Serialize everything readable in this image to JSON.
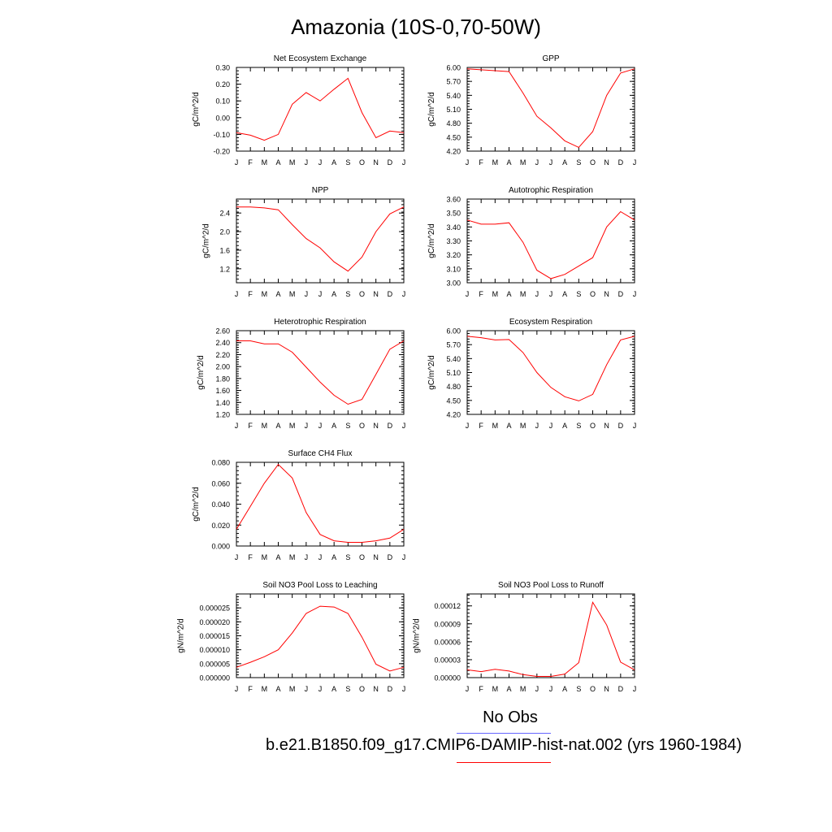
{
  "page": {
    "title": "Amazonia (10S-0,70-50W)"
  },
  "months": [
    "J",
    "F",
    "M",
    "A",
    "M",
    "J",
    "J",
    "A",
    "S",
    "O",
    "N",
    "D",
    "J"
  ],
  "legend": {
    "obs_label": "No Obs",
    "obs_color": "#6666ff",
    "model_label": "b.e21.B1850.f09_g17.CMIP6-DAMIP-hist-nat.002 (yrs 1960-1984)",
    "model_color": "#ff0000"
  },
  "chart_data": [
    {
      "type": "line",
      "title": "Net Ecosystem Exchange",
      "ylabel": "gC/m^2/d",
      "ylim": [
        -0.2,
        0.3
      ],
      "yticks": [
        -0.2,
        -0.1,
        0.0,
        0.1,
        0.2,
        0.3
      ],
      "ytick_labels": [
        "-0.20",
        "-0.10",
        "0.00",
        "0.10",
        "0.20",
        "0.30"
      ],
      "series": [
        {
          "values": [
            -0.09,
            -0.105,
            -0.135,
            -0.1,
            0.08,
            0.15,
            0.1,
            0.17,
            0.235,
            0.03,
            -0.12,
            -0.08,
            -0.09
          ]
        }
      ]
    },
    {
      "type": "line",
      "title": "GPP",
      "ylabel": "gC/m^2/d",
      "ylim": [
        4.2,
        6.0
      ],
      "yticks": [
        4.2,
        4.5,
        4.8,
        5.1,
        5.4,
        5.7,
        6.0
      ],
      "ytick_labels": [
        "4.20",
        "4.50",
        "4.80",
        "5.10",
        "5.40",
        "5.70",
        "6.00"
      ],
      "series": [
        {
          "values": [
            5.97,
            5.95,
            5.93,
            5.91,
            5.45,
            4.95,
            4.7,
            4.42,
            4.28,
            4.62,
            5.4,
            5.88,
            5.97
          ]
        }
      ]
    },
    {
      "type": "line",
      "title": "NPP",
      "ylabel": "gC/m^2/d",
      "ylim": [
        0.9,
        2.7
      ],
      "yticks": [
        1.2,
        1.6,
        2.0,
        2.4
      ],
      "ytick_labels": [
        "1.2",
        "1.6",
        "2.0",
        "2.4"
      ],
      "series": [
        {
          "values": [
            2.53,
            2.53,
            2.51,
            2.47,
            2.15,
            1.85,
            1.65,
            1.35,
            1.15,
            1.45,
            2.0,
            2.38,
            2.53
          ]
        }
      ]
    },
    {
      "type": "line",
      "title": "Autotrophic Respiration",
      "ylabel": "gC/m^2/d",
      "ylim": [
        3.0,
        3.6
      ],
      "yticks": [
        3.0,
        3.1,
        3.2,
        3.3,
        3.4,
        3.5,
        3.6
      ],
      "ytick_labels": [
        "3.00",
        "3.10",
        "3.20",
        "3.30",
        "3.40",
        "3.50",
        "3.60"
      ],
      "series": [
        {
          "values": [
            3.45,
            3.42,
            3.42,
            3.43,
            3.29,
            3.09,
            3.03,
            3.06,
            3.12,
            3.18,
            3.4,
            3.51,
            3.45
          ]
        }
      ]
    },
    {
      "type": "line",
      "title": "Heterotrophic Respiration",
      "ylabel": "gC/m^2/d",
      "ylim": [
        1.2,
        2.6
      ],
      "yticks": [
        1.2,
        1.4,
        1.6,
        1.8,
        2.0,
        2.2,
        2.4,
        2.6
      ],
      "ytick_labels": [
        "1.20",
        "1.40",
        "1.60",
        "1.80",
        "2.00",
        "2.20",
        "2.40",
        "2.60"
      ],
      "series": [
        {
          "values": [
            2.43,
            2.43,
            2.38,
            2.38,
            2.24,
            1.99,
            1.74,
            1.52,
            1.37,
            1.45,
            1.87,
            2.29,
            2.43
          ]
        }
      ]
    },
    {
      "type": "line",
      "title": "Ecosystem Respiration",
      "ylabel": "gC/m^2/d",
      "ylim": [
        4.2,
        6.0
      ],
      "yticks": [
        4.2,
        4.5,
        4.8,
        5.1,
        5.4,
        5.7,
        6.0
      ],
      "ytick_labels": [
        "4.20",
        "4.50",
        "4.80",
        "5.10",
        "5.40",
        "5.70",
        "6.00"
      ],
      "series": [
        {
          "values": [
            5.88,
            5.85,
            5.8,
            5.81,
            5.53,
            5.1,
            4.78,
            4.58,
            4.49,
            4.63,
            5.27,
            5.8,
            5.88
          ]
        }
      ]
    },
    {
      "type": "line",
      "title": "Surface CH4 Flux",
      "ylabel": "gC/m^2/d",
      "ylim": [
        0.0,
        0.08
      ],
      "yticks": [
        0.0,
        0.02,
        0.04,
        0.06,
        0.08
      ],
      "ytick_labels": [
        "0.000",
        "0.020",
        "0.040",
        "0.060",
        "0.080"
      ],
      "series": [
        {
          "values": [
            0.016,
            0.038,
            0.06,
            0.078,
            0.065,
            0.032,
            0.011,
            0.005,
            0.0035,
            0.0035,
            0.005,
            0.0075,
            0.016
          ]
        }
      ]
    },
    {
      "type": "line",
      "title": "Soil NO3 Pool Loss to Leaching",
      "ylabel": "gN/m^2/d",
      "ylim": [
        0.0,
        3e-05
      ],
      "yticks": [
        0.0,
        5e-06,
        1e-05,
        1.5e-05,
        2e-05,
        2.5e-05
      ],
      "ytick_labels": [
        "0.000000",
        "0.000005",
        "0.000010",
        "0.000015",
        "0.000020",
        "0.000025"
      ],
      "series": [
        {
          "values": [
            3.7e-06,
            5.5e-06,
            7.5e-06,
            1e-05,
            1.6e-05,
            2.3e-05,
            2.56e-05,
            2.53e-05,
            2.3e-05,
            1.45e-05,
            4.8e-06,
            2.4e-06,
            3.7e-06
          ]
        }
      ]
    },
    {
      "type": "line",
      "title": "Soil NO3 Pool Loss to Runoff",
      "ylabel": "gN/m^2/d",
      "ylim": [
        0.0,
        0.00014
      ],
      "yticks": [
        0.0,
        3e-05,
        6e-05,
        9e-05,
        0.00012
      ],
      "ytick_labels": [
        "0.00000",
        "0.00003",
        "0.00006",
        "0.00009",
        "0.00012"
      ],
      "series": [
        {
          "values": [
            1.3e-05,
            1e-05,
            1.4e-05,
            1.1e-05,
            5e-06,
            2e-06,
            2e-06,
            6e-06,
            2.5e-05,
            0.000126,
            8.8e-05,
            2.6e-05,
            1.3e-05
          ]
        }
      ]
    }
  ]
}
